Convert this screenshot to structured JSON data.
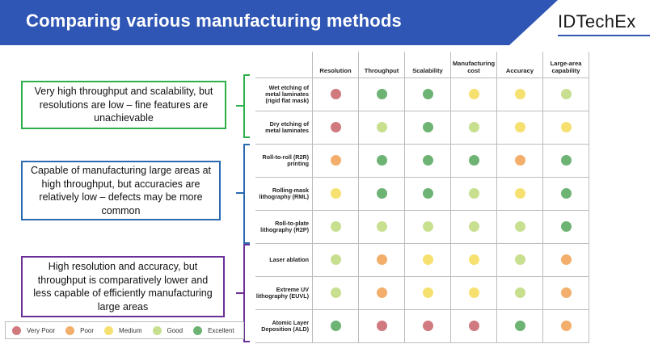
{
  "header": {
    "title": "Comparing various manufacturing methods",
    "logo": "IDTechEx"
  },
  "callouts": {
    "green": "Very high throughput and scalability, but resolutions are low – fine features are unachievable",
    "blue": "Capable of manufacturing large areas at high throughput, but accuracies are relatively low – defects may be more common",
    "purple": "High resolution and accuracy, but throughput is comparatively lower and less capable of efficiently manufacturing large areas"
  },
  "colors": {
    "very_poor": "#d07a7f",
    "poor": "#f2ae6a",
    "medium": "#f6e070",
    "good": "#c7df8f",
    "excellent": "#6db374",
    "green_group": "#2db04a",
    "blue_group": "#2a6ab0",
    "purple_group": "#6b2f97",
    "header_blue": "#2f56b4"
  },
  "legend": [
    {
      "key": "very_poor",
      "label": "Very Poor"
    },
    {
      "key": "poor",
      "label": "Poor"
    },
    {
      "key": "medium",
      "label": "Medium"
    },
    {
      "key": "good",
      "label": "Good"
    },
    {
      "key": "excellent",
      "label": "Excellent"
    }
  ],
  "table": {
    "columns": [
      "Resolution",
      "Throughput",
      "Scalability",
      "Manufacturing cost",
      "Accuracy",
      "Large-area capability"
    ],
    "rows": [
      {
        "label": "Wet etching of metal laminates (rigid flat mask)",
        "ratings": [
          "very_poor",
          "excellent",
          "excellent",
          "medium",
          "medium",
          "good"
        ]
      },
      {
        "label": "Dry etching of metal laminates",
        "ratings": [
          "very_poor",
          "good",
          "excellent",
          "good",
          "medium",
          "medium"
        ]
      },
      {
        "label": "Roll-to-roll (R2R) printing",
        "ratings": [
          "poor",
          "excellent",
          "excellent",
          "excellent",
          "poor",
          "excellent"
        ]
      },
      {
        "label": "Rolling-mask lithography (RML)",
        "ratings": [
          "medium",
          "excellent",
          "excellent",
          "good",
          "medium",
          "excellent"
        ]
      },
      {
        "label": "Roll-to-plate lithography (R2P)",
        "ratings": [
          "good",
          "good",
          "good",
          "good",
          "good",
          "excellent"
        ]
      },
      {
        "label": "Laser ablation",
        "ratings": [
          "good",
          "poor",
          "medium",
          "medium",
          "good",
          "poor"
        ]
      },
      {
        "label": "Extreme UV lithography (EUVL)",
        "ratings": [
          "good",
          "poor",
          "medium",
          "medium",
          "good",
          "poor"
        ]
      },
      {
        "label": "Atomic Layer Deposition (ALD)",
        "ratings": [
          "excellent",
          "very_poor",
          "very_poor",
          "very_poor",
          "excellent",
          "poor"
        ]
      }
    ]
  }
}
